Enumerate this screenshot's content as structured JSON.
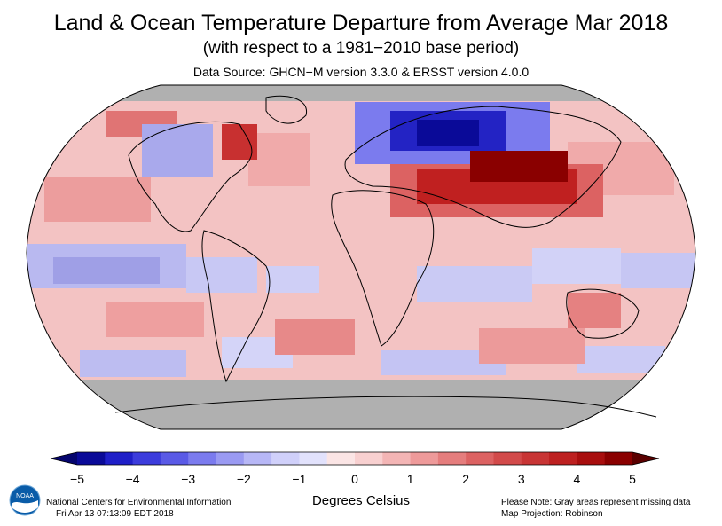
{
  "header": {
    "title": "Land & Ocean Temperature Departure from Average Mar 2018",
    "subtitle": "(with respect to a 1981−2010 base period)",
    "source": "Data Source: GHCN−M version 3.3.0 & ERSST version 4.0.0"
  },
  "colorbar": {
    "ticks": [
      "−5",
      "−4",
      "−3",
      "−2",
      "−1",
      "0",
      "1",
      "2",
      "3",
      "4",
      "5"
    ],
    "unit": "Degrees Celsius",
    "colors": [
      "#0a0a98",
      "#1f1fc8",
      "#3c3cdc",
      "#5a5ae6",
      "#7b7bee",
      "#9a9af2",
      "#b7b7f6",
      "#d0d0fa",
      "#e2e2fc",
      "#fbe5e5",
      "#f8d0d0",
      "#f3b5b5",
      "#ee9a9a",
      "#e57d7d",
      "#dc6262",
      "#d24a4a",
      "#c83535",
      "#bd2020",
      "#a80e0e",
      "#8a0000"
    ]
  },
  "footer": {
    "org": "National Centers for Environmental Information",
    "timestamp": "Fri Apr 13 07:13:09 EDT 2018",
    "note": "Please Note: Gray areas represent missing data",
    "projection": "Map Projection: Robinson"
  },
  "logo_text": "NOAA",
  "map_colors": {
    "missing": "#b0b0b0",
    "coast": "#000000"
  }
}
